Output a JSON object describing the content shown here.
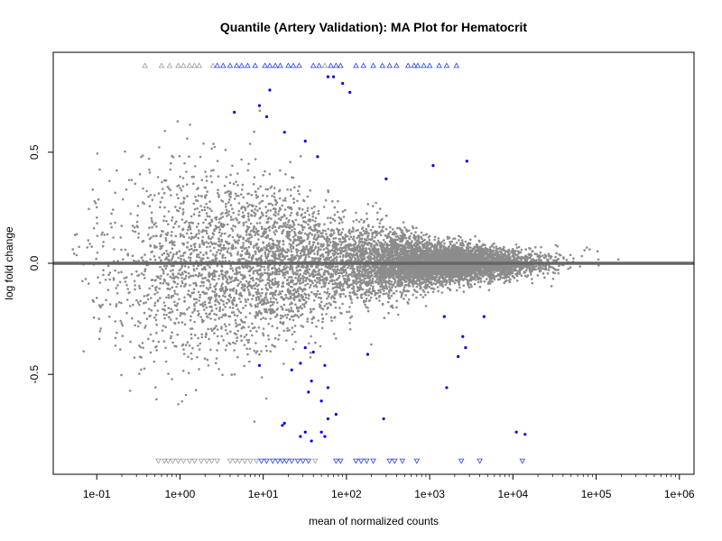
{
  "chart_data": {
    "type": "scatter",
    "title": "Quantile (Artery Validation): MA Plot for Hematocrit",
    "xlabel": "mean of normalized counts",
    "ylabel": "log fold change",
    "x_scale": "log10",
    "xlim": [
      0.03,
      1500000
    ],
    "ylim": [
      -0.95,
      0.95
    ],
    "x_ticks": [
      {
        "value": 0.1,
        "label": "1e-01"
      },
      {
        "value": 1,
        "label": "1e+00"
      },
      {
        "value": 10,
        "label": "1e+01"
      },
      {
        "value": 100,
        "label": "1e+02"
      },
      {
        "value": 1000,
        "label": "1e+03"
      },
      {
        "value": 10000,
        "label": "1e+04"
      },
      {
        "value": 100000,
        "label": "1e+05"
      },
      {
        "value": 1000000,
        "label": "1e+06"
      }
    ],
    "y_ticks": [
      {
        "value": -0.5,
        "label": "-0.5"
      },
      {
        "value": 0.0,
        "label": "0.0"
      },
      {
        "value": 0.5,
        "label": "0.5"
      }
    ],
    "reference_line": {
      "y": 0,
      "color": "#666666"
    },
    "grid": false,
    "legend": "none",
    "colors": {
      "non_significant": "#8c8c8c",
      "significant": "#0000ee",
      "clipped_non_significant": "#9a9a9a",
      "clipped_significant": "#1f3dff",
      "reference_line": "#666666"
    },
    "cloud_summary": {
      "description_points": "approximately 9000 non-significant genes forming a funnel-shaped cloud centered on log fold change 0, widest at low counts and narrowing at high counts",
      "point_count_approx": 9000,
      "x_range": [
        0.05,
        700000
      ],
      "spread_profile": [
        {
          "x": 0.1,
          "sd": 0.28
        },
        {
          "x": 1,
          "sd": 0.3
        },
        {
          "x": 10,
          "sd": 0.24
        },
        {
          "x": 100,
          "sd": 0.14
        },
        {
          "x": 1000,
          "sd": 0.06
        },
        {
          "x": 10000,
          "sd": 0.04
        },
        {
          "x": 100000,
          "sd": 0.05
        }
      ]
    },
    "series": [
      {
        "role": "significant",
        "points": [
          {
            "x": 60,
            "y": 0.84
          },
          {
            "x": 70,
            "y": 0.84
          },
          {
            "x": 90,
            "y": 0.81
          },
          {
            "x": 12,
            "y": 0.78
          },
          {
            "x": 110,
            "y": 0.77
          },
          {
            "x": 9,
            "y": 0.71
          },
          {
            "x": 11,
            "y": 0.66
          },
          {
            "x": 4.5,
            "y": 0.68
          },
          {
            "x": 18,
            "y": 0.59
          },
          {
            "x": 32,
            "y": 0.55
          },
          {
            "x": 45,
            "y": 0.48
          },
          {
            "x": 1100,
            "y": 0.44
          },
          {
            "x": 2800,
            "y": 0.46
          },
          {
            "x": 300,
            "y": 0.38
          },
          {
            "x": 1500,
            "y": -0.24
          },
          {
            "x": 4500,
            "y": -0.24
          },
          {
            "x": 2500,
            "y": -0.33
          },
          {
            "x": 2700,
            "y": -0.38
          },
          {
            "x": 2200,
            "y": -0.42
          },
          {
            "x": 180,
            "y": -0.41
          },
          {
            "x": 32,
            "y": -0.38
          },
          {
            "x": 40,
            "y": -0.4
          },
          {
            "x": 28,
            "y": -0.45
          },
          {
            "x": 55,
            "y": -0.46
          },
          {
            "x": 9,
            "y": -0.46
          },
          {
            "x": 22,
            "y": -0.48
          },
          {
            "x": 38,
            "y": -0.53
          },
          {
            "x": 60,
            "y": -0.56
          },
          {
            "x": 35,
            "y": -0.58
          },
          {
            "x": 1600,
            "y": -0.56
          },
          {
            "x": 50,
            "y": -0.62
          },
          {
            "x": 75,
            "y": -0.68
          },
          {
            "x": 60,
            "y": -0.7
          },
          {
            "x": 280,
            "y": -0.7
          },
          {
            "x": 18,
            "y": -0.72
          },
          {
            "x": 17,
            "y": -0.73
          },
          {
            "x": 32,
            "y": -0.76
          },
          {
            "x": 50,
            "y": -0.76
          },
          {
            "x": 28,
            "y": -0.78
          },
          {
            "x": 55,
            "y": -0.78
          },
          {
            "x": 38,
            "y": -0.8
          },
          {
            "x": 11000,
            "y": -0.76
          },
          {
            "x": 14000,
            "y": -0.77
          }
        ]
      }
    ],
    "clipped_points": {
      "top_y": 0.89,
      "bottom_y": -0.89,
      "marker_top": "triangle-up",
      "marker_bottom": "triangle-down",
      "top": [
        {
          "x": 0.38,
          "sig": false
        },
        {
          "x": 0.6,
          "sig": false
        },
        {
          "x": 0.75,
          "sig": false
        },
        {
          "x": 0.95,
          "sig": false
        },
        {
          "x": 1.1,
          "sig": false
        },
        {
          "x": 1.3,
          "sig": false
        },
        {
          "x": 1.5,
          "sig": false
        },
        {
          "x": 1.7,
          "sig": false
        },
        {
          "x": 2.5,
          "sig": false
        },
        {
          "x": 2.8,
          "sig": true
        },
        {
          "x": 3.3,
          "sig": true
        },
        {
          "x": 4.0,
          "sig": true
        },
        {
          "x": 4.8,
          "sig": true
        },
        {
          "x": 5.5,
          "sig": true
        },
        {
          "x": 6.5,
          "sig": true
        },
        {
          "x": 8.0,
          "sig": true
        },
        {
          "x": 10.5,
          "sig": true
        },
        {
          "x": 12,
          "sig": true
        },
        {
          "x": 14,
          "sig": true
        },
        {
          "x": 16,
          "sig": true
        },
        {
          "x": 20,
          "sig": true
        },
        {
          "x": 23,
          "sig": true
        },
        {
          "x": 27,
          "sig": true
        },
        {
          "x": 40,
          "sig": true
        },
        {
          "x": 47,
          "sig": true
        },
        {
          "x": 55,
          "sig": false
        },
        {
          "x": 65,
          "sig": true
        },
        {
          "x": 75,
          "sig": true
        },
        {
          "x": 85,
          "sig": true
        },
        {
          "x": 130,
          "sig": true
        },
        {
          "x": 160,
          "sig": true
        },
        {
          "x": 210,
          "sig": true
        },
        {
          "x": 270,
          "sig": true
        },
        {
          "x": 330,
          "sig": true
        },
        {
          "x": 400,
          "sig": true
        },
        {
          "x": 550,
          "sig": true
        },
        {
          "x": 650,
          "sig": true
        },
        {
          "x": 720,
          "sig": true
        },
        {
          "x": 850,
          "sig": true
        },
        {
          "x": 1000,
          "sig": true
        },
        {
          "x": 1300,
          "sig": true
        },
        {
          "x": 1600,
          "sig": true
        },
        {
          "x": 2100,
          "sig": true
        }
      ],
      "bottom": [
        {
          "x": 0.55,
          "sig": false
        },
        {
          "x": 0.65,
          "sig": false
        },
        {
          "x": 0.72,
          "sig": false
        },
        {
          "x": 0.82,
          "sig": false
        },
        {
          "x": 0.95,
          "sig": false
        },
        {
          "x": 1.1,
          "sig": false
        },
        {
          "x": 1.3,
          "sig": false
        },
        {
          "x": 1.5,
          "sig": false
        },
        {
          "x": 1.8,
          "sig": false
        },
        {
          "x": 2.1,
          "sig": false
        },
        {
          "x": 2.4,
          "sig": false
        },
        {
          "x": 2.8,
          "sig": false
        },
        {
          "x": 4.0,
          "sig": false
        },
        {
          "x": 4.6,
          "sig": false
        },
        {
          "x": 5.2,
          "sig": false
        },
        {
          "x": 6.0,
          "sig": false
        },
        {
          "x": 7.0,
          "sig": false
        },
        {
          "x": 8.3,
          "sig": false
        },
        {
          "x": 9.5,
          "sig": true
        },
        {
          "x": 11,
          "sig": true
        },
        {
          "x": 13,
          "sig": true
        },
        {
          "x": 15,
          "sig": true
        },
        {
          "x": 17,
          "sig": true
        },
        {
          "x": 19,
          "sig": true
        },
        {
          "x": 22,
          "sig": true
        },
        {
          "x": 26,
          "sig": true
        },
        {
          "x": 30,
          "sig": true
        },
        {
          "x": 35,
          "sig": true
        },
        {
          "x": 42,
          "sig": false
        },
        {
          "x": 75,
          "sig": true
        },
        {
          "x": 85,
          "sig": true
        },
        {
          "x": 130,
          "sig": true
        },
        {
          "x": 150,
          "sig": true
        },
        {
          "x": 175,
          "sig": true
        },
        {
          "x": 210,
          "sig": true
        },
        {
          "x": 330,
          "sig": true
        },
        {
          "x": 380,
          "sig": true
        },
        {
          "x": 470,
          "sig": true
        },
        {
          "x": 700,
          "sig": true
        },
        {
          "x": 2400,
          "sig": true
        },
        {
          "x": 4000,
          "sig": true
        },
        {
          "x": 13000,
          "sig": true
        }
      ]
    }
  }
}
